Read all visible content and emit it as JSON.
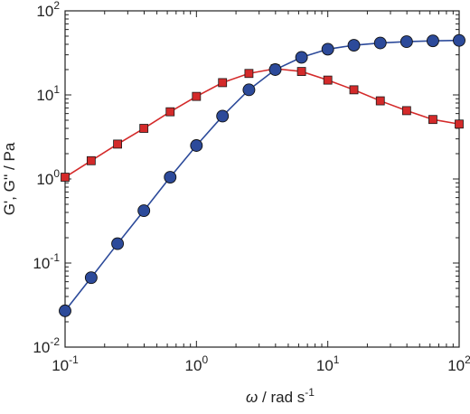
{
  "chart_data": {
    "type": "line",
    "x_scale": "log",
    "y_scale": "log",
    "xlim": [
      0.1,
      100
    ],
    "ylim": [
      0.01,
      100
    ],
    "grid": false,
    "legend": "none",
    "xlabel": {
      "symbol": "ω",
      "text": " / rad s",
      "superscript": "-1"
    },
    "ylabel": "G', G'' / Pa",
    "x_ticks": [
      {
        "value": 0.1,
        "base": "10",
        "exp": "-1"
      },
      {
        "value": 1,
        "base": "10",
        "exp": "0"
      },
      {
        "value": 10,
        "base": "10",
        "exp": "1"
      },
      {
        "value": 100,
        "base": "10",
        "exp": "2"
      }
    ],
    "y_ticks": [
      {
        "value": 0.01,
        "base": "10",
        "exp": "-2"
      },
      {
        "value": 0.1,
        "base": "10",
        "exp": "-1"
      },
      {
        "value": 1,
        "base": "10",
        "exp": "0"
      },
      {
        "value": 10,
        "base": "10",
        "exp": "1"
      },
      {
        "value": 100,
        "base": "10",
        "exp": "2"
      }
    ],
    "x": [
      0.1,
      0.158,
      0.251,
      0.398,
      0.631,
      1.0,
      1.58,
      2.51,
      3.98,
      6.31,
      10.0,
      15.8,
      25.1,
      39.8,
      63.1,
      100
    ],
    "series": [
      {
        "marker": "square",
        "color": "#d42a2a",
        "values": [
          1.05,
          1.65,
          2.6,
          4.0,
          6.3,
          9.6,
          14.0,
          18.0,
          20.5,
          19.0,
          15.0,
          11.5,
          8.5,
          6.5,
          5.1,
          4.5
        ]
      },
      {
        "marker": "circle",
        "color": "#2c4a9a",
        "values": [
          0.027,
          0.067,
          0.17,
          0.42,
          1.05,
          2.5,
          5.6,
          11.5,
          20.0,
          28.0,
          35.0,
          39.0,
          41.5,
          43.0,
          44.0,
          44.5
        ]
      }
    ]
  }
}
